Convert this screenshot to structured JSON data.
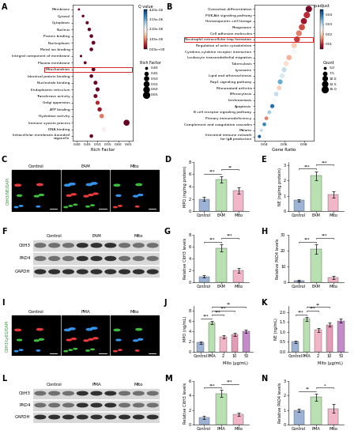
{
  "chart_data": [
    {
      "panel": "A",
      "type": "scatter",
      "xlabel": "Rich Factor",
      "categories": [
        "Membrane",
        "Cytosol",
        "Cytoplasm",
        "Nucleus",
        "Protein binding",
        "Nucleoplasm",
        "Metal ion binding",
        "Integral component of membrane",
        "Plasma membrane",
        "Mitochondrion",
        "Identical protein binding",
        "Nucleotide binding",
        "Endoplasmic reticulum",
        "Transferase activity",
        "Golgi apparatus",
        "ATP binding",
        "Hydrolase activity",
        "Immune system process",
        "DNA binding",
        "Intracellular membrane-bounded\norganelle"
      ],
      "values": [
        0.41,
        0.43,
        0.45,
        0.46,
        0.47,
        0.48,
        0.47,
        0.42,
        0.44,
        0.48,
        0.47,
        0.49,
        0.5,
        0.49,
        0.5,
        0.51,
        0.52,
        0.64,
        0.53,
        0.47
      ],
      "q_values": [
        0.0,
        0.0,
        0.0,
        0.0,
        0.0,
        0.0,
        0.0,
        0.0,
        0.0,
        0.0,
        0.0,
        0.0,
        0.0,
        1e-07,
        5e-07,
        3e-07,
        1e-06,
        0.0,
        2e-06,
        0.0
      ],
      "xlim": [
        0.38,
        0.67
      ],
      "xticks": [
        {
          "value": 0.4,
          "label": "0.40"
        },
        {
          "value": 0.45,
          "label": "0.45"
        },
        {
          "value": 0.5,
          "label": "0.50"
        },
        {
          "value": 0.55,
          "label": "0.55"
        },
        {
          "value": 0.6,
          "label": "0.60"
        },
        {
          "value": 0.65,
          "label": "0.65"
        }
      ],
      "colorbar": {
        "label": "Q value",
        "lim": [
          0,
          4.2e-06
        ],
        "ticks": [
          {
            "value": 4.2e-06,
            "label": "4.20e-06"
          },
          {
            "value": 3.15e-06,
            "label": "3.15e-06"
          },
          {
            "value": 2.1e-06,
            "label": "2.10e-06"
          },
          {
            "value": 1.05e-06,
            "label": "1.05e-06"
          },
          {
            "value": 0,
            "label": "0.00e+00"
          }
        ]
      },
      "size_legend": {
        "title": "Rich Factor",
        "values": [
          {
            "value": 0.4,
            "label": "0.40"
          },
          {
            "value": 0.45,
            "label": "0.45"
          },
          {
            "value": 0.5,
            "label": "0.50"
          },
          {
            "value": 0.55,
            "label": "0.55"
          },
          {
            "value": 0.6,
            "label": "0.60"
          },
          {
            "value": 0.65,
            "label": "0.65"
          }
        ]
      },
      "highlight": "Mitochondrion"
    },
    {
      "panel": "B",
      "type": "scatter",
      "xlabel": "Gene Ratio",
      "categories": [
        "Osteoclast differentiation",
        "PI3K-Akt signaling pathway",
        "Hematopoietic cell lineage",
        "Phagosome",
        "Cell adhesion molecules",
        "Neutrophil extracellular trap formation",
        "Regulation of actin cytoskeleton",
        "Cytokine-cytokine receptor interaction",
        "Leukocyte transendothelial migration",
        "Tuberculosis",
        "Lysosome",
        "Lipid and atherosclerosis",
        "Rap1 signaling pathway",
        "Rheumatoid arthritis",
        "Efferocytosis",
        "Leishmaniasis",
        "Apoptosis",
        "B cell receptor signaling pathway",
        "Primary immunodeficiency",
        "Complement and coagulation cascades",
        "Malaria",
        "Intestinal immune network\nfor IgA production"
      ],
      "values": [
        0.085,
        0.083,
        0.08,
        0.078,
        0.075,
        0.073,
        0.07,
        0.07,
        0.065,
        0.062,
        0.06,
        0.058,
        0.056,
        0.055,
        0.052,
        0.05,
        0.048,
        0.045,
        0.042,
        0.04,
        0.037,
        0.035
      ],
      "counts": [
        16,
        16,
        15,
        15,
        14,
        14,
        13,
        13,
        12,
        12,
        11,
        11,
        11,
        10,
        10,
        9,
        9,
        8,
        8,
        8,
        7,
        7
      ],
      "p_adjust": [
        0.006,
        0.01,
        0.008,
        0.012,
        0.015,
        0.011,
        0.02,
        0.025,
        0.018,
        0.022,
        0.03,
        0.028,
        0.035,
        0.02,
        0.03,
        0.025,
        0.04,
        0.032,
        0.015,
        0.038,
        0.03,
        0.042
      ],
      "xlim": [
        0.03,
        0.09
      ],
      "xticks": [
        0.04,
        0.06,
        0.08
      ],
      "colorbar": {
        "label": "p.adjust",
        "lim": [
          0.005,
          0.045
        ],
        "ticks": [
          0.01,
          0.02,
          0.03,
          0.04
        ]
      },
      "size_legend": {
        "title": "Count",
        "values": [
          5.0,
          7.5,
          10.0,
          12.5,
          15.0
        ]
      },
      "highlight": "Neutrophil extracellular trap formation"
    },
    {
      "panel": "D",
      "type": "bar",
      "ylabel": "MPO (ng/mg protein)",
      "categories": [
        "Control",
        "EAM",
        "Mito"
      ],
      "values": [
        2.0,
        5.2,
        3.4
      ],
      "errors": [
        0.3,
        0.5,
        0.5
      ],
      "colors": [
        "#9db3d6",
        "#b8e0b0",
        "#f3b6c9"
      ],
      "ylim": [
        0,
        8
      ],
      "yticks": [
        0,
        2,
        4,
        6,
        8
      ],
      "annotations": [
        [
          0,
          1,
          "***"
        ],
        [
          1,
          2,
          "**"
        ]
      ]
    },
    {
      "panel": "E",
      "type": "bar",
      "ylabel": "NE (ng/mg protein)",
      "categories": [
        "Control",
        "EAM",
        "Mito"
      ],
      "values": [
        0.7,
        2.3,
        1.1
      ],
      "errors": [
        0.1,
        0.3,
        0.2
      ],
      "colors": [
        "#9db3d6",
        "#b8e0b0",
        "#f3b6c9"
      ],
      "ylim": [
        0,
        3.2
      ],
      "yticks": [
        0,
        1,
        2,
        3
      ],
      "annotations": [
        [
          0,
          1,
          "***"
        ],
        [
          1,
          2,
          "***"
        ]
      ]
    },
    {
      "panel": "G",
      "type": "bar",
      "ylabel": "Relative CitH3 levels",
      "categories": [
        "Control",
        "EAM",
        "Mito"
      ],
      "values": [
        1.0,
        5.8,
        2.0
      ],
      "errors": [
        0.2,
        0.6,
        0.4
      ],
      "colors": [
        "#9db3d6",
        "#b8e0b0",
        "#f3b6c9"
      ],
      "ylim": [
        0,
        8
      ],
      "yticks": [
        0,
        2,
        4,
        6,
        8
      ],
      "annotations": [
        [
          0,
          1,
          "***"
        ],
        [
          1,
          2,
          "***"
        ]
      ]
    },
    {
      "panel": "H",
      "type": "bar",
      "ylabel": "Relative PAD4 levels",
      "categories": [
        "Control",
        "EAM",
        "Mito"
      ],
      "values": [
        1.0,
        21.0,
        3.0
      ],
      "errors": [
        0.3,
        3.0,
        1.0
      ],
      "colors": [
        "#9db3d6",
        "#b8e0b0",
        "#f3b6c9"
      ],
      "ylim": [
        0,
        30
      ],
      "yticks": [
        0,
        10,
        20,
        30
      ],
      "annotations": [
        [
          0,
          1,
          "***"
        ],
        [
          1,
          2,
          "***"
        ]
      ]
    },
    {
      "panel": "J",
      "type": "bar",
      "ylabel": "MPO (ng/mL)",
      "xlabel": "Mito (μg/mL)",
      "categories": [
        "Control",
        "PMA",
        "2",
        "10",
        "50"
      ],
      "values": [
        1.8,
        5.8,
        3.0,
        3.4,
        4.0
      ],
      "errors": [
        0.2,
        0.3,
        0.3,
        0.3,
        0.3
      ],
      "colors": [
        "#9db3d6",
        "#b8e0b0",
        "#f3b6c9",
        "#e39ab5",
        "#c58ac9"
      ],
      "ylim": [
        0,
        9
      ],
      "yticks": [
        0,
        2,
        4,
        6,
        8
      ],
      "annotations": [
        [
          0,
          1,
          "***"
        ],
        [
          1,
          2,
          "***"
        ],
        [
          1,
          3,
          "***"
        ],
        [
          1,
          4,
          "**"
        ]
      ]
    },
    {
      "panel": "K",
      "type": "bar",
      "ylabel": "NE (ng/mL)",
      "xlabel": "Mito (μg/mL)",
      "categories": [
        "Control",
        "PMA",
        "2",
        "10",
        "50"
      ],
      "values": [
        0.5,
        1.65,
        1.1,
        1.35,
        1.55
      ],
      "errors": [
        0.05,
        0.1,
        0.1,
        0.1,
        0.1
      ],
      "colors": [
        "#9db3d6",
        "#b8e0b0",
        "#f3b6c9",
        "#e39ab5",
        "#c58ac9"
      ],
      "ylim": [
        0,
        2.3
      ],
      "yticks": [
        {
          "value": 0,
          "label": "0.0"
        },
        {
          "value": 0.5,
          "label": "0.5"
        },
        {
          "value": 1.0,
          "label": "1.0"
        },
        {
          "value": 1.5,
          "label": "1.5"
        },
        {
          "value": 2.0,
          "label": "2.0"
        }
      ],
      "annotations": [
        [
          0,
          1,
          "***"
        ],
        [
          1,
          2,
          "***"
        ],
        [
          1,
          3,
          "**"
        ]
      ]
    },
    {
      "panel": "M",
      "type": "bar",
      "ylabel": "Relative CitH3 levels",
      "categories": [
        "Control",
        "PMA",
        "Mito"
      ],
      "values": [
        1.0,
        4.3,
        1.4
      ],
      "errors": [
        0.2,
        0.5,
        0.2
      ],
      "colors": [
        "#9db3d6",
        "#b8e0b0",
        "#f3b6c9"
      ],
      "ylim": [
        0,
        6
      ],
      "yticks": [
        0,
        2,
        4,
        6
      ],
      "annotations": [
        [
          0,
          1,
          "***"
        ],
        [
          1,
          2,
          "***"
        ]
      ]
    },
    {
      "panel": "N",
      "type": "bar",
      "ylabel": "Relative PAD4 levels",
      "categories": [
        "Control",
        "PMA",
        "Mito"
      ],
      "values": [
        1.0,
        1.9,
        1.1
      ],
      "errors": [
        0.1,
        0.25,
        0.3
      ],
      "colors": [
        "#9db3d6",
        "#b8e0b0",
        "#f3b6c9"
      ],
      "ylim": [
        0,
        3
      ],
      "yticks": [
        0,
        1,
        2,
        3
      ],
      "annotations": [
        [
          0,
          1,
          "**"
        ],
        [
          1,
          2,
          "*"
        ]
      ]
    }
  ],
  "images": [
    {
      "panel": "C",
      "type": "image",
      "labels": [
        "Control",
        "EAM",
        "Mito"
      ],
      "stain": "CitH3/NE/DAPI"
    },
    {
      "panel": "F",
      "type": "blot",
      "groups": [
        "Control",
        "EAM",
        "Mito"
      ],
      "bands": [
        "CitH3",
        "PAD4",
        "GAPDH"
      ]
    },
    {
      "panel": "I",
      "type": "image",
      "labels": [
        "Control",
        "PMA",
        "Mito"
      ],
      "stain": "CitH3/Ly6G/DAPI"
    },
    {
      "panel": "L",
      "type": "blot",
      "groups": [
        "Control",
        "PMA",
        "Mito"
      ],
      "bands": [
        "CitH3",
        "PAD4",
        "GAPDH"
      ]
    }
  ]
}
